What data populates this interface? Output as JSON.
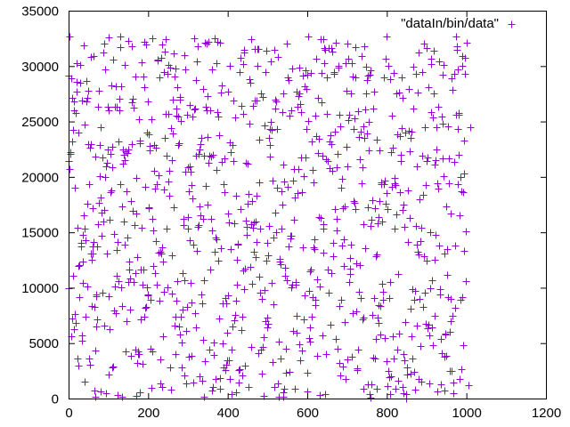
{
  "chart_data": {
    "type": "scatter",
    "title": "",
    "xlabel": "",
    "ylabel": "",
    "xlim": [
      0,
      1200
    ],
    "ylim": [
      0,
      35000
    ],
    "xticks": [
      0,
      200,
      400,
      600,
      800,
      1000,
      1200
    ],
    "yticks": [
      0,
      5000,
      10000,
      15000,
      20000,
      25000,
      30000,
      35000
    ],
    "xtick_labels": [
      "0",
      "200",
      "400",
      "600",
      "800",
      "1000",
      "1200"
    ],
    "ytick_labels": [
      "0",
      "5000",
      "10000",
      "15000",
      "20000",
      "25000",
      "30000",
      "35000"
    ],
    "grid": false,
    "legend_position": "top-right",
    "marker": "plus",
    "series": [
      {
        "name": "\"dataIn/bin/data\"",
        "color": "#9400d3",
        "point_count": 1000,
        "x_range": [
          0,
          1000
        ],
        "y_range": [
          0,
          32767
        ],
        "points": [
          [
            0,
            29100
          ],
          [
            10,
            7200
          ],
          [
            13,
            26800
          ],
          [
            20,
            30300
          ],
          [
            25,
            3000
          ],
          [
            35,
            14800
          ],
          [
            40,
            1500
          ],
          [
            48,
            27100
          ],
          [
            55,
            30800
          ],
          [
            60,
            17200
          ],
          [
            70,
            6500
          ],
          [
            80,
            24500
          ],
          [
            90,
            32000
          ],
          [
            100,
            2200
          ],
          [
            110,
            20900
          ],
          [
            120,
            11100
          ],
          [
            130,
            31700
          ],
          [
            140,
            13900
          ],
          [
            150,
            32300
          ],
          [
            160,
            26700
          ],
          [
            170,
            16700
          ],
          [
            180,
            600
          ],
          [
            190,
            28100
          ],
          [
            200,
            9300
          ],
          [
            210,
            32500
          ],
          [
            220,
            22600
          ],
          [
            230,
            3500
          ],
          [
            240,
            18900
          ],
          [
            250,
            30100
          ],
          [
            260,
            12900
          ],
          [
            270,
            25500
          ],
          [
            280,
            5800
          ],
          [
            290,
            31000
          ],
          [
            300,
            15300
          ],
          [
            310,
            8700
          ],
          [
            320,
            28700
          ],
          [
            330,
            2000
          ],
          [
            340,
            21900
          ],
          [
            350,
            17500
          ],
          [
            360,
            700
          ],
          [
            380,
            32100
          ],
          [
            400,
            16700
          ],
          [
            420,
            18300
          ],
          [
            440,
            31200
          ],
          [
            460,
            32400
          ],
          [
            480,
            11000
          ],
          [
            500,
            6400
          ],
          [
            520,
            27000
          ],
          [
            540,
            21100
          ],
          [
            560,
            14700
          ],
          [
            580,
            29900
          ],
          [
            600,
            2300
          ],
          [
            620,
            25500
          ],
          [
            640,
            13200
          ],
          [
            660,
            31600
          ],
          [
            680,
            3200
          ],
          [
            700,
            32000
          ],
          [
            720,
            17100
          ],
          [
            740,
            24600
          ],
          [
            752,
            1300
          ],
          [
            760,
            29600
          ],
          [
            780,
            6800
          ],
          [
            800,
            32700
          ],
          [
            820,
            19900
          ],
          [
            840,
            27100
          ],
          [
            860,
            23500
          ],
          [
            880,
            1800
          ],
          [
            900,
            31600
          ],
          [
            920,
            12500
          ],
          [
            940,
            29200
          ],
          [
            960,
            7000
          ],
          [
            980,
            22000
          ],
          [
            990,
            30000
          ],
          [
            995,
            13300
          ],
          [
            1000,
            32100
          ],
          [
            1005,
            1200
          ],
          [
            1010,
            24500
          ]
        ]
      }
    ]
  }
}
